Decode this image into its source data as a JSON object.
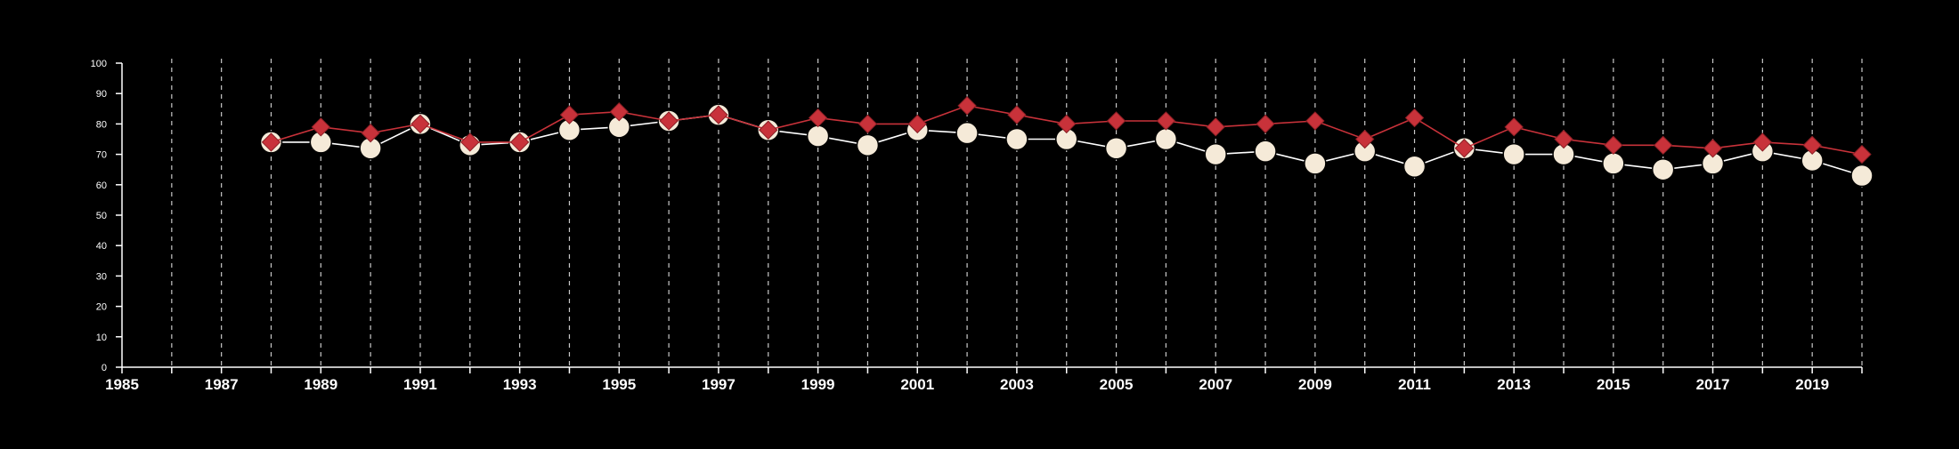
{
  "chart_data": {
    "type": "line",
    "title": "",
    "xlabel": "",
    "ylabel": "",
    "xlim": [
      1985,
      2020
    ],
    "ylim": [
      0,
      100
    ],
    "y_ticks": [
      0,
      10,
      20,
      30,
      40,
      50,
      60,
      70,
      80,
      90,
      100
    ],
    "x_tick_labels": [
      "1985",
      "1987",
      "1989",
      "1991",
      "1993",
      "1995",
      "1997",
      "1999",
      "2001",
      "2003",
      "2005",
      "2007",
      "2009",
      "2011",
      "2013",
      "2015",
      "2017",
      "2019"
    ],
    "vertical_gridlines": "dashed, every year",
    "x": [
      1988,
      1989,
      1990,
      1991,
      1992,
      1993,
      1994,
      1995,
      1996,
      1997,
      1998,
      1999,
      2000,
      2001,
      2002,
      2003,
      2004,
      2005,
      2006,
      2007,
      2008,
      2009,
      2010,
      2011,
      2012,
      2013,
      2014,
      2015,
      2016,
      2017,
      2018,
      2019,
      2020
    ],
    "series": [
      {
        "marker": "circle",
        "color": "#f5ead8",
        "values": [
          74,
          74,
          72,
          80,
          73,
          74,
          78,
          79,
          81,
          83,
          78,
          76,
          73,
          78,
          77,
          75,
          75,
          72,
          75,
          70,
          71,
          67,
          71,
          66,
          72,
          70,
          70,
          67,
          65,
          67,
          71,
          68,
          63
        ]
      },
      {
        "marker": "diamond",
        "color": "#c8323a",
        "values": [
          74,
          79,
          77,
          80,
          74,
          74,
          83,
          84,
          81,
          83,
          78,
          82,
          80,
          80,
          86,
          83,
          80,
          81,
          81,
          79,
          80,
          81,
          75,
          82,
          72,
          79,
          75,
          73,
          73,
          72,
          74,
          73,
          70
        ]
      }
    ]
  }
}
